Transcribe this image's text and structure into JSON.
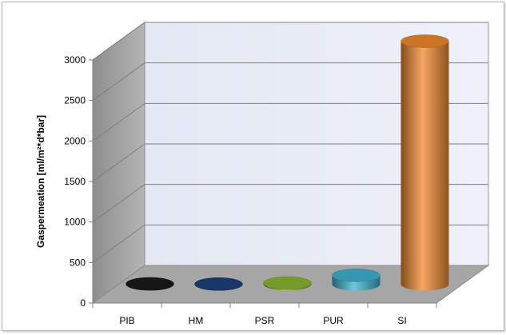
{
  "chart_data": {
    "type": "bar",
    "style": "3d-cylinder",
    "categories": [
      "PIB",
      "HM",
      "PSR",
      "PUR",
      "SI"
    ],
    "values": [
      5,
      2,
      15,
      110,
      3000
    ],
    "title": "",
    "xlabel": "",
    "ylabel": "Gaspermeation  [ml/m²*d*bar]",
    "ylim": [
      0,
      3000
    ],
    "yticks": [
      0,
      500,
      1000,
      1500,
      2000,
      2500,
      3000
    ],
    "grid": true,
    "legend": "none",
    "colors": [
      "#1a1a1a",
      "#1f3f78",
      "#8ab832",
      "#3fb3cf",
      "#f08a30"
    ]
  }
}
